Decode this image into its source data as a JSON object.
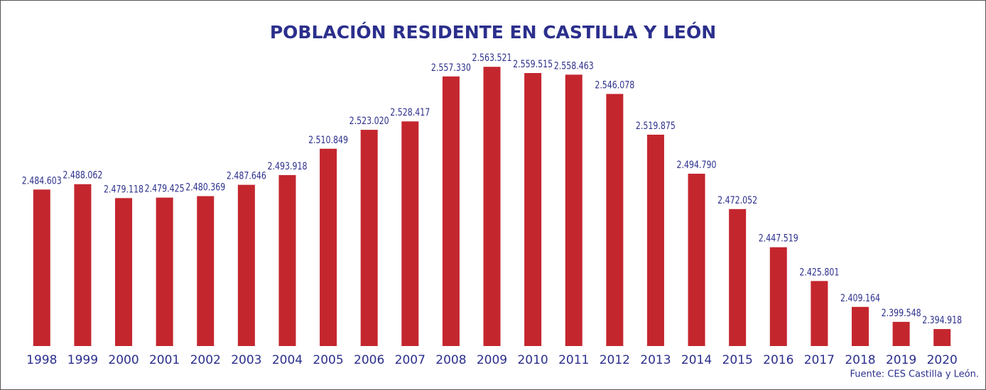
{
  "chart_data": {
    "type": "bar",
    "title": "POBLACIÓN RESIDENTE EN CASTILLA Y LEÓN",
    "categories": [
      "1998",
      "1999",
      "2000",
      "2001",
      "2002",
      "2003",
      "2004",
      "2005",
      "2006",
      "2007",
      "2008",
      "2009",
      "2010",
      "2011",
      "2012",
      "2013",
      "2014",
      "2015",
      "2016",
      "2017",
      "2018",
      "2019",
      "2020"
    ],
    "values": [
      2484603,
      2488062,
      2479118,
      2479425,
      2480369,
      2487646,
      2493918,
      2510849,
      2523020,
      2528417,
      2557330,
      2563521,
      2559515,
      2558463,
      2546078,
      2519875,
      2494790,
      2472052,
      2447519,
      2425801,
      2409164,
      2399548,
      2394918
    ],
    "value_labels": [
      "2.484.603",
      "2.488.062",
      "2.479.118",
      "2.479.425",
      "2.480.369",
      "2.487.646",
      "2.493.918",
      "2.510.849",
      "2.523.020",
      "2.528.417",
      "2.557.330",
      "2.563.521",
      "2.559.515",
      "2.558.463",
      "2.546.078",
      "2.519.875",
      "2.494.790",
      "2.472.052",
      "2.447.519",
      "2.425.801",
      "2.409.164",
      "2.399.548",
      "2.394.918"
    ],
    "color": "#c4262e",
    "ylim": [
      2384000,
      2570000
    ],
    "source": "Fuente: CES Castilla y León."
  }
}
